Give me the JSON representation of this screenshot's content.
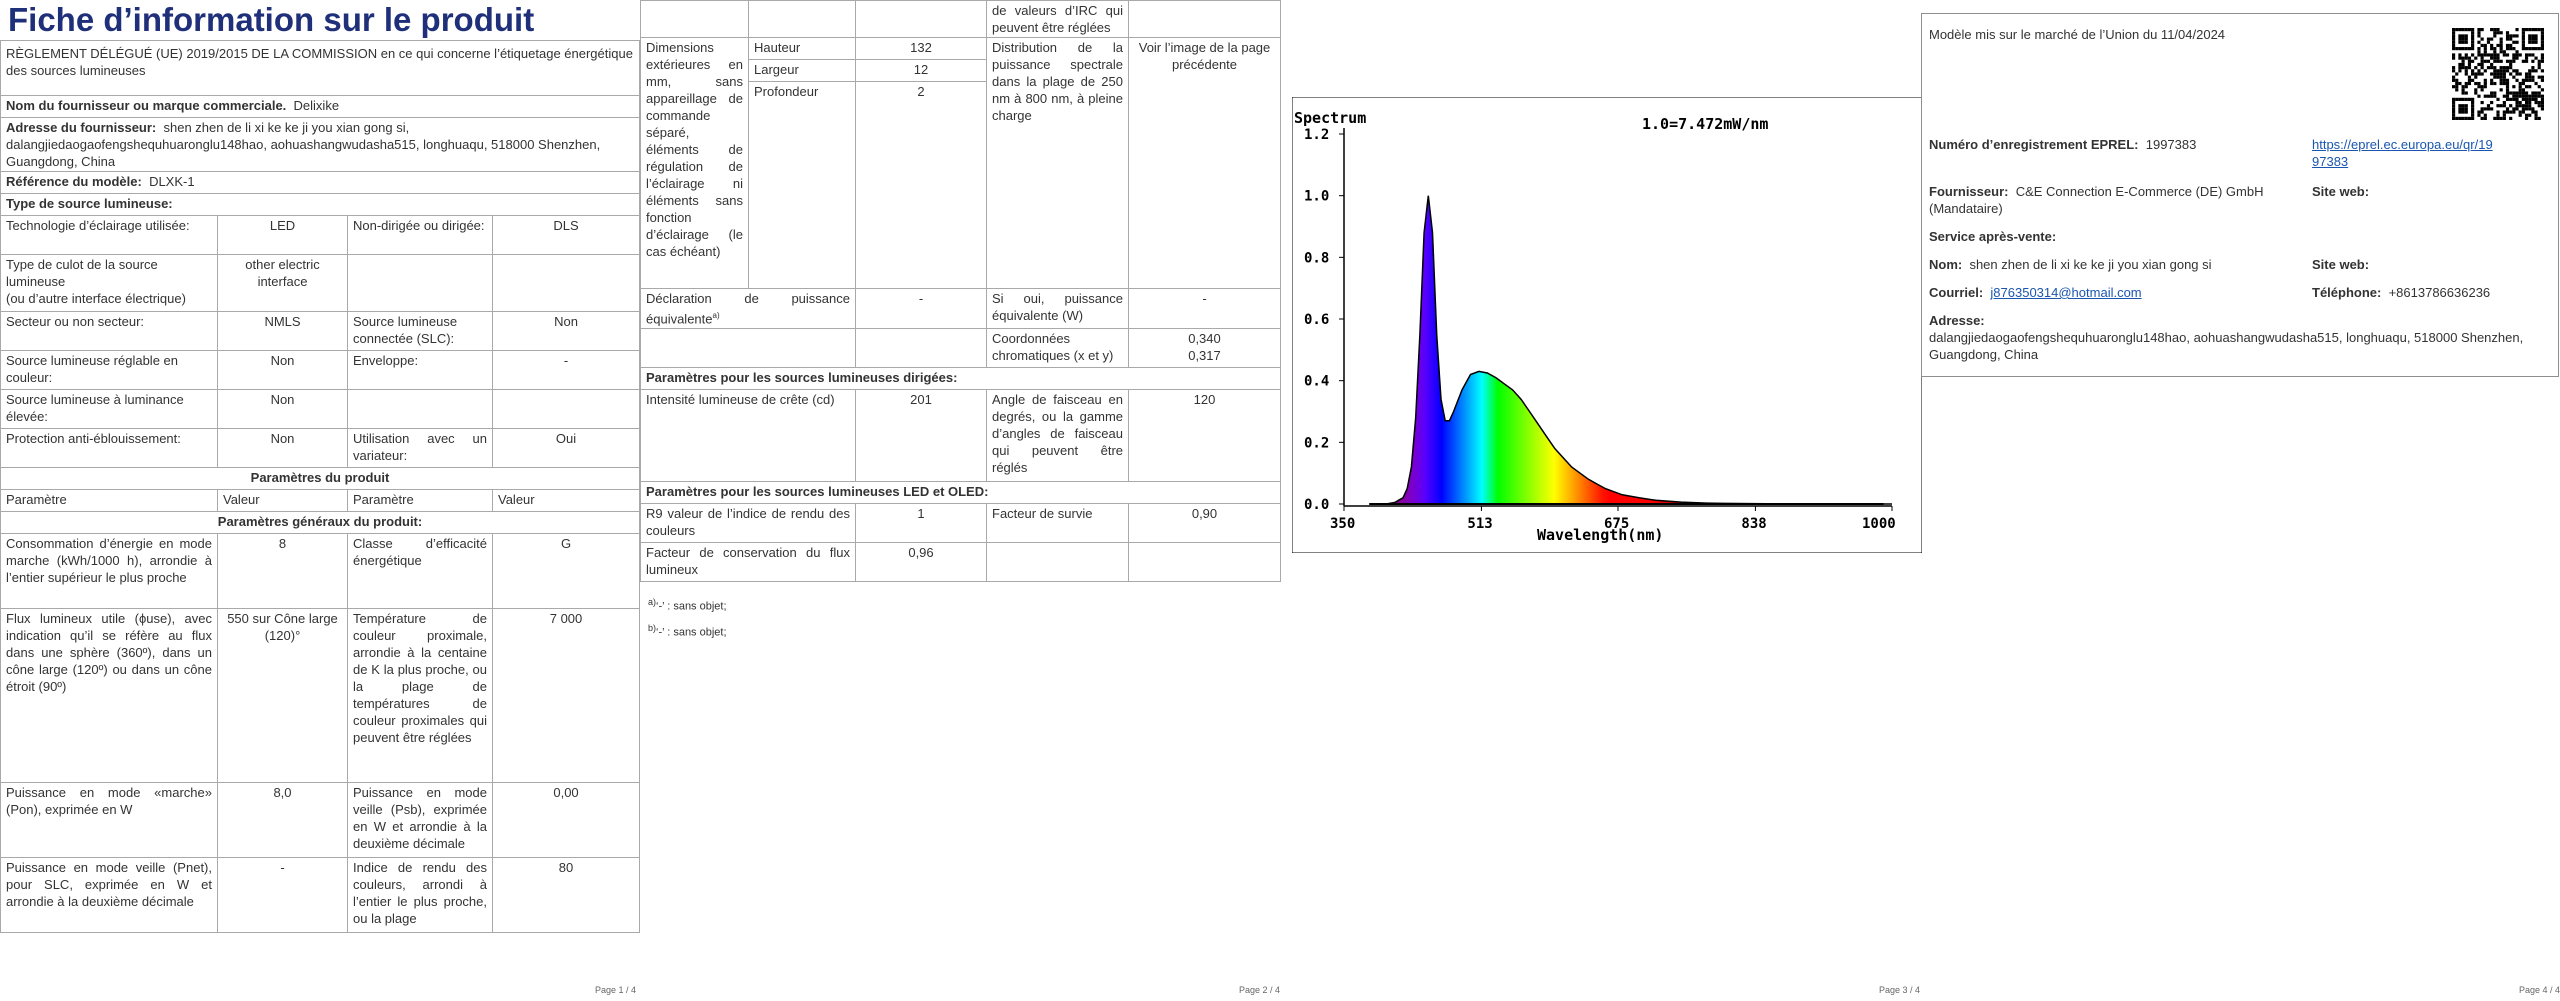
{
  "page1": {
    "title": "Fiche d’information sur le produit",
    "regulation": "RÈGLEMENT DÉLÉGUÉ (UE) 2019/2015 DE LA COMMISSION en ce qui concerne l’étiquetage énergétique des sources lumineuses",
    "supplier_label": "Nom du fournisseur ou marque commerciale.",
    "supplier_value": "Delixike",
    "address_label": "Adresse du fournisseur:",
    "address_value": "shen zhen de li xi ke ke ji you xian gong si, dalangjiedaogaofengshequhuaronglu148hao, aohuashangwudasha515, longhuaqu, 518000 Shenzhen, Guangdong, China",
    "model_label": "Référence du modèle:",
    "model_value": "DLXK-1",
    "type_header": "Type de source lumineuse:",
    "rows": [
      {
        "a": "Technologie d’éclairage utilisée:",
        "b": "LED",
        "c": "Non-dirigée ou dirigée:",
        "d": "DLS"
      },
      {
        "a": "Type de culot de la source lumineuse\n(ou d’autre interface électrique)",
        "b": "other electric interface",
        "c": "",
        "d": ""
      },
      {
        "a": "Secteur ou non secteur:",
        "b": "NMLS",
        "c": "Source lumineuse connectée (SLC):",
        "d": "Non"
      },
      {
        "a": "Source lumineuse réglable en couleur:",
        "b": "Non",
        "c": "Enveloppe:",
        "d": "-"
      },
      {
        "a": "Source lumineuse à luminance élevée:",
        "b": "Non",
        "c": "",
        "d": ""
      },
      {
        "a": "Protection anti-éblouissement:",
        "b": "Non",
        "c": "Utilisation avec un variateur:",
        "d": "Oui"
      }
    ],
    "params_header": "Paramètres du produit",
    "col_param": "Paramètre",
    "col_value": "Valeur",
    "general_header": "Paramètres généraux du produit:",
    "general_rows": [
      {
        "a": "Consommation d’énergie en mode marche (kWh/1000 h), arrondie à l’entier supérieur le plus proche",
        "b": "8",
        "c": "Classe d’efficacité énergétique",
        "d": "G"
      },
      {
        "a": "Flux lumineux utile (ϕuse), avec indication qu’il se réfère au flux dans une sphère (360º), dans un cône large (120º) ou dans un cône étroit (90º)",
        "b": "550 sur Cône large (120)°",
        "c": "Température de couleur proximale, arrondie à la centaine de K la plus proche, ou la plage de températures de couleur proximales qui peuvent être réglées",
        "d": "7 000"
      },
      {
        "a": "Puissance en mode «marche» (Pon), exprimée en W",
        "b": "8,0",
        "c": "Puissance en mode veille (Psb), exprimée en W et arrondie à la deuxième décimale",
        "d": "0,00"
      },
      {
        "a": "Puissance en mode veille (Pnet), pour SLC, exprimée en W et arrondie à la deuxième décimale",
        "b": "-",
        "c": "Indice de rendu des couleurs, arrondi à l’entier le plus proche, ou la plage",
        "d": "80"
      }
    ],
    "page_num": "Page 1 / 4"
  },
  "page2": {
    "top_right_text": "de valeurs d’IRC qui peuvent être réglées",
    "dims_label": "Dimensions extérieures en mm, sans appareillage de commande séparé, éléments de régulation de l’éclairage ni éléments sans fonction d’éclairage (le cas échéant)",
    "dims": [
      {
        "name": "Hauteur",
        "value": "132"
      },
      {
        "name": "Largeur",
        "value": "12"
      },
      {
        "name": "Profondeur",
        "value": "2"
      }
    ],
    "spectral_label": "Distribution de la puissance spectrale dans la plage de 250 nm à 800 nm, à pleine charge",
    "spectral_value": "Voir l’image de la page précédente",
    "decl_label": "Déclaration de puissance équivalente",
    "decl_sup": "a)",
    "decl_value": "-",
    "equiv_label": "Si oui, puissance équivalente (W)",
    "equiv_value": "-",
    "chroma_label": "Coordonnées chromatiques (x et y)",
    "chroma_x": "0,340",
    "chroma_y": "0,317",
    "directed_header": "Paramètres pour les sources lumineuses dirigées:",
    "peak_label": "Intensité lumineuse de crête (cd)",
    "peak_value": "201",
    "beam_label": "Angle de faisceau en degrés, ou la gamme d’angles de faisceau qui peuvent être réglés",
    "beam_value": "120",
    "led_header": "Paramètres pour les sources lumineuses LED et OLED:",
    "r9_label": "R9 valeur de l’indice de rendu des couleurs",
    "r9_value": "1",
    "survival_label": "Facteur de survie",
    "survival_value": "0,90",
    "flux_label": "Facteur de conservation du flux lumineux",
    "flux_value": "0,96",
    "footnote_a_mark": "a)",
    "footnote_a": "‘-’ : sans objet;",
    "footnote_b_mark": "b)",
    "footnote_b": "‘-’ : sans objet;",
    "page_num": "Page 2 / 4"
  },
  "page3": {
    "page_num": "Page 3 / 4"
  },
  "chart_data": {
    "type": "line",
    "title": "Spectrum",
    "annotation": "1.0=7.472mW/nm",
    "xlabel": "Wavelength(nm)",
    "ylabel": "",
    "xlim": [
      350,
      1000
    ],
    "ylim": [
      0,
      1.2
    ],
    "xticks": [
      "350",
      "513",
      "675",
      "838",
      "1000"
    ],
    "yticks": [
      "0.0",
      "0.2",
      "0.4",
      "0.6",
      "0.8",
      "1.0",
      "1.2"
    ],
    "series": [
      {
        "x": [
          380,
          400,
          410,
          420,
          425,
          430,
          435,
          440,
          445,
          450,
          455,
          460,
          465,
          470,
          475,
          480,
          490,
          500,
          510,
          520,
          530,
          540,
          550,
          560,
          570,
          580,
          590,
          600,
          610,
          620,
          630,
          640,
          650,
          660,
          680,
          700,
          720,
          750,
          780,
          800,
          850,
          900,
          950,
          1000
        ],
        "y": [
          0.0,
          0.0,
          0.005,
          0.02,
          0.05,
          0.12,
          0.28,
          0.55,
          0.88,
          1.0,
          0.88,
          0.55,
          0.34,
          0.27,
          0.27,
          0.3,
          0.37,
          0.42,
          0.43,
          0.425,
          0.41,
          0.39,
          0.37,
          0.34,
          0.3,
          0.26,
          0.22,
          0.18,
          0.15,
          0.12,
          0.1,
          0.08,
          0.065,
          0.05,
          0.03,
          0.02,
          0.012,
          0.006,
          0.003,
          0.002,
          0.001,
          0.0,
          0.0,
          0.0
        ]
      }
    ],
    "grid": false
  },
  "page4": {
    "market_date": "Modèle mis sur le marché de l’Union du 11/04/2024",
    "eprel_label": "Numéro d’enregistrement EPREL:",
    "eprel_value": "1997383",
    "eprel_link_1": "https://eprel.ec.europa.eu/qr/19",
    "eprel_link_2": "97383",
    "supplier_label": "Fournisseur:",
    "supplier_value": "C&E Connection E-Commerce (DE) GmbH",
    "supplier_role": "(Mandataire)",
    "website_label": "Site web:",
    "service_label": "Service après-vente:",
    "name_label": "Nom:",
    "name_value": "shen zhen de li xi ke ke ji you xian gong si",
    "website2_label": "Site web:",
    "email_label": "Courriel:",
    "email_value": "j876350314@hotmail.com",
    "phone_label": "Téléphone:",
    "phone_value": "+8613786636236",
    "address_label": "Adresse:",
    "address_value": "dalangjiedaogaofengshequhuaronglu148hao, aohuashangwudasha515, longhuaqu, 518000 Shenzhen, Guangdong, China",
    "page_num": "Page 4 / 4"
  }
}
